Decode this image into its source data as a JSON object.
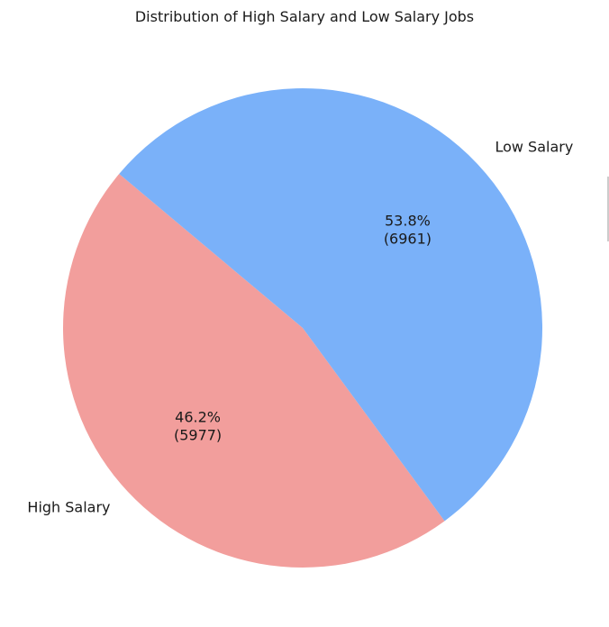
{
  "chart_data": {
    "type": "pie",
    "title": "Distribution of High Salary and Low Salary Jobs",
    "slices": [
      {
        "label": "High Salary",
        "value": 5977,
        "percent_label": "46.2%",
        "count_label": "(5977)",
        "color": "#f29e9c"
      },
      {
        "label": "Low Salary",
        "value": 6961,
        "percent_label": "53.8%",
        "count_label": "(6961)",
        "color": "#7ab1f9"
      }
    ],
    "start_angle_deg": 140,
    "direction": "counterclockwise",
    "legend": "none"
  }
}
